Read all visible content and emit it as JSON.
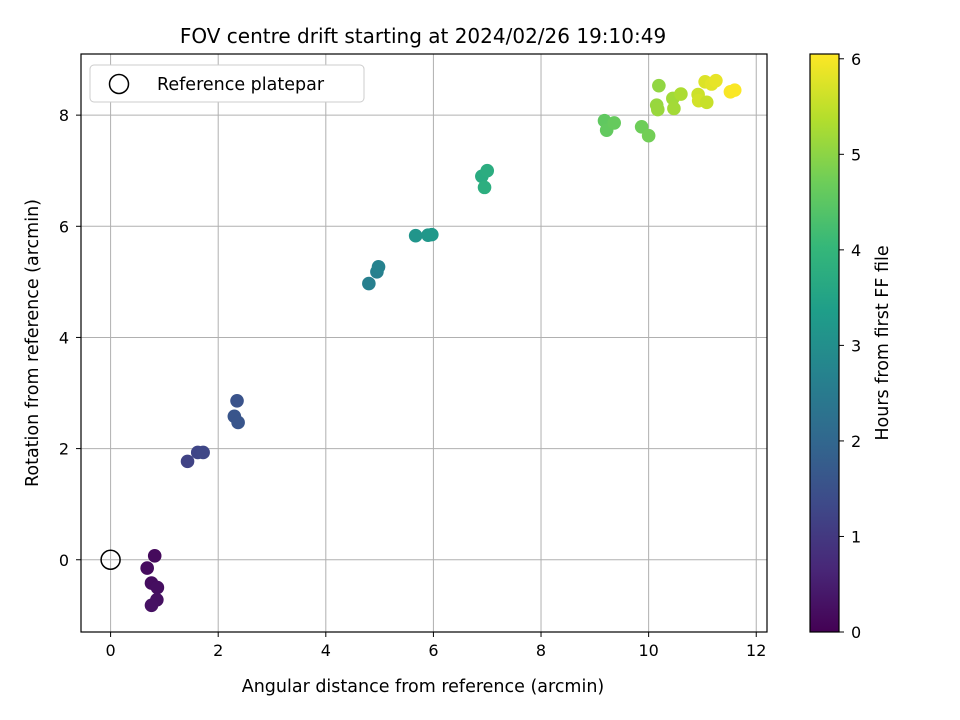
{
  "chart_data": {
    "type": "scatter",
    "title": "FOV centre drift starting at 2024/02/26 19:10:49",
    "xlabel": "Angular distance from reference (arcmin)",
    "ylabel": "Rotation from reference (arcmin)",
    "xlim": [
      -0.55,
      12.2
    ],
    "ylim": [
      -1.3,
      9.1
    ],
    "xticks": [
      0,
      2,
      4,
      6,
      8,
      10,
      12
    ],
    "yticks": [
      0,
      2,
      4,
      6,
      8
    ],
    "grid": true,
    "legend": {
      "position": "upper-left",
      "entries": [
        "Reference platepar"
      ]
    },
    "reference_point": {
      "x": 0,
      "y": 0,
      "label": "Reference platepar"
    },
    "colorbar": {
      "label": "Hours from first FF file",
      "range": [
        0,
        6.05
      ],
      "ticks": [
        0,
        1,
        2,
        3,
        4,
        5,
        6
      ],
      "colormap": "viridis"
    },
    "points": [
      {
        "x": 0.82,
        "y": 0.07,
        "t": 0.15
      },
      {
        "x": 0.68,
        "y": -0.15,
        "t": 0.18
      },
      {
        "x": 0.76,
        "y": -0.42,
        "t": 0.2
      },
      {
        "x": 0.87,
        "y": -0.5,
        "t": 0.22
      },
      {
        "x": 0.86,
        "y": -0.72,
        "t": 0.25
      },
      {
        "x": 0.76,
        "y": -0.82,
        "t": 0.28
      },
      {
        "x": 1.43,
        "y": 1.77,
        "t": 1.2
      },
      {
        "x": 1.62,
        "y": 1.93,
        "t": 1.25
      },
      {
        "x": 1.72,
        "y": 1.93,
        "t": 1.28
      },
      {
        "x": 2.35,
        "y": 2.86,
        "t": 1.55
      },
      {
        "x": 2.3,
        "y": 2.58,
        "t": 1.58
      },
      {
        "x": 2.37,
        "y": 2.47,
        "t": 1.6
      },
      {
        "x": 4.8,
        "y": 4.97,
        "t": 2.6
      },
      {
        "x": 4.95,
        "y": 5.18,
        "t": 2.65
      },
      {
        "x": 4.98,
        "y": 5.27,
        "t": 2.68
      },
      {
        "x": 5.67,
        "y": 5.83,
        "t": 3.15
      },
      {
        "x": 5.9,
        "y": 5.84,
        "t": 3.2
      },
      {
        "x": 5.97,
        "y": 5.85,
        "t": 3.22
      },
      {
        "x": 6.9,
        "y": 6.9,
        "t": 3.7
      },
      {
        "x": 7.0,
        "y": 7.0,
        "t": 3.75
      },
      {
        "x": 6.95,
        "y": 6.7,
        "t": 3.78
      },
      {
        "x": 9.18,
        "y": 7.9,
        "t": 4.55
      },
      {
        "x": 9.22,
        "y": 7.73,
        "t": 4.58
      },
      {
        "x": 9.36,
        "y": 7.86,
        "t": 4.62
      },
      {
        "x": 9.87,
        "y": 7.79,
        "t": 4.7
      },
      {
        "x": 10.0,
        "y": 7.63,
        "t": 4.75
      },
      {
        "x": 10.19,
        "y": 8.53,
        "t": 5.05
      },
      {
        "x": 10.15,
        "y": 8.18,
        "t": 5.1
      },
      {
        "x": 10.17,
        "y": 8.1,
        "t": 5.12
      },
      {
        "x": 10.45,
        "y": 8.3,
        "t": 5.2
      },
      {
        "x": 10.47,
        "y": 8.12,
        "t": 5.22
      },
      {
        "x": 10.6,
        "y": 8.38,
        "t": 5.3
      },
      {
        "x": 10.92,
        "y": 8.37,
        "t": 5.6
      },
      {
        "x": 10.93,
        "y": 8.26,
        "t": 5.65
      },
      {
        "x": 11.08,
        "y": 8.23,
        "t": 5.55
      },
      {
        "x": 11.05,
        "y": 8.6,
        "t": 5.75
      },
      {
        "x": 11.17,
        "y": 8.56,
        "t": 5.8
      },
      {
        "x": 11.25,
        "y": 8.62,
        "t": 5.85
      },
      {
        "x": 11.52,
        "y": 8.42,
        "t": 6.0
      },
      {
        "x": 11.6,
        "y": 8.45,
        "t": 6.02
      }
    ]
  }
}
